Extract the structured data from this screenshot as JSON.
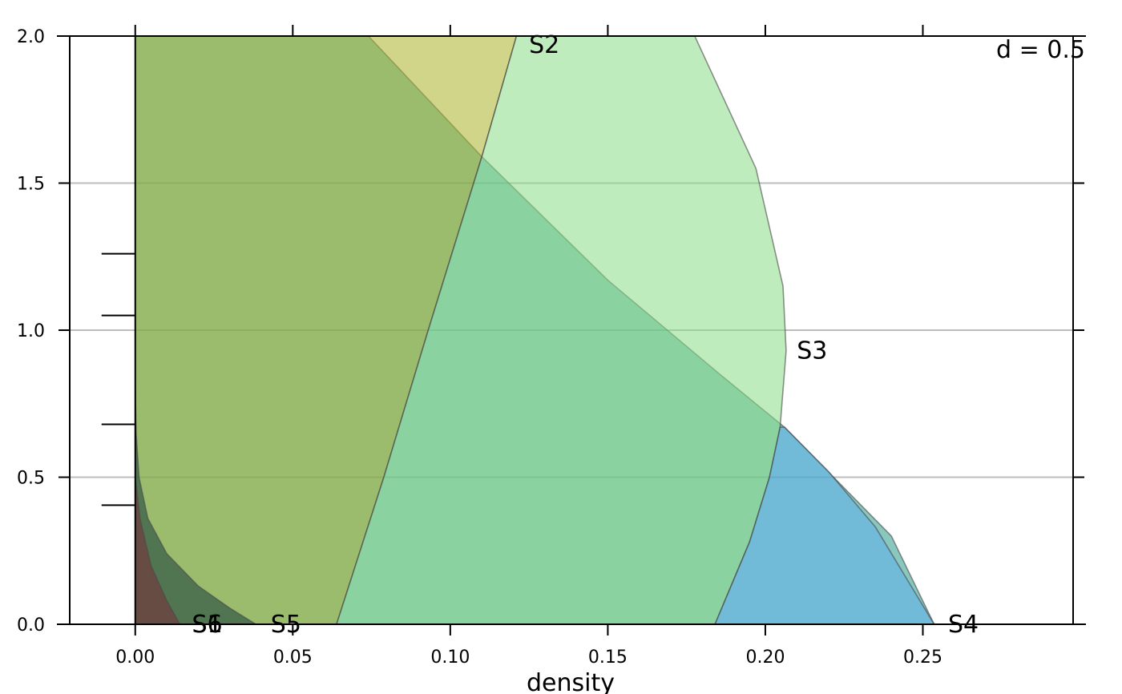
{
  "chart_data": {
    "type": "area",
    "panel_label": "d = 0.5",
    "xlabel": "density",
    "ylabel": "",
    "xlim": [
      -0.0208,
      0.2977
    ],
    "ylim": [
      0,
      2
    ],
    "x_ticks": [
      "0.00",
      "0.05",
      "0.10",
      "0.15",
      "0.20",
      "0.25"
    ],
    "x_tick_values": [
      0,
      0.05,
      0.1,
      0.15,
      0.2,
      0.25
    ],
    "y_ticks": [
      "0.0",
      "0.5",
      "1.0",
      "1.5",
      "2.0"
    ],
    "y_tick_values": [
      0,
      0.5,
      1.0,
      1.5,
      2.0
    ],
    "horizontal_grid": true,
    "rug_values": [
      0.405,
      0.68,
      1.05,
      1.26
    ],
    "series": [
      {
        "name": "S1",
        "label": "S1",
        "color": "#2A9B8A",
        "points": [
          [
            0.0,
            0.0
          ],
          [
            0.0,
            2.0
          ],
          [
            0.074,
            2.0
          ],
          [
            0.11,
            1.59
          ],
          [
            0.15,
            1.17
          ],
          [
            0.1856,
            0.85
          ],
          [
            0.2061,
            0.67
          ],
          [
            0.24,
            0.3
          ],
          [
            0.2536,
            0.0
          ]
        ]
      },
      {
        "name": "S2",
        "label": "S2",
        "color": "#A9B32A",
        "points": [
          [
            0.0,
            0.0
          ],
          [
            0.0,
            2.0
          ],
          [
            0.121,
            2.0
          ],
          [
            0.11,
            1.59
          ],
          [
            0.093,
            1.0
          ],
          [
            0.0789,
            0.5
          ],
          [
            0.0639,
            0.0
          ]
        ]
      },
      {
        "name": "S3",
        "label": "S3",
        "color": "#8BDC86",
        "points": [
          [
            0.0639,
            0.0
          ],
          [
            0.0789,
            0.5
          ],
          [
            0.093,
            1.0
          ],
          [
            0.11,
            1.59
          ],
          [
            0.121,
            2.0
          ],
          [
            0.1776,
            2.0
          ],
          [
            0.197,
            1.55
          ],
          [
            0.2056,
            1.15
          ],
          [
            0.2066,
            0.93
          ],
          [
            0.2047,
            0.67
          ],
          [
            0.2013,
            0.5
          ],
          [
            0.195,
            0.28
          ],
          [
            0.184,
            0.0
          ]
        ]
      },
      {
        "name": "S4",
        "label": "S4",
        "color": "#5DB0EE",
        "points": [
          [
            0.184,
            0.0
          ],
          [
            0.195,
            0.28
          ],
          [
            0.2013,
            0.5
          ],
          [
            0.2047,
            0.67
          ],
          [
            0.2061,
            0.67
          ],
          [
            0.22,
            0.52
          ],
          [
            0.235,
            0.33
          ],
          [
            0.2536,
            0.0
          ]
        ]
      },
      {
        "name": "S5",
        "label": "S5",
        "color": "#143A3A",
        "points": [
          [
            0.0,
            0.0
          ],
          [
            0.0,
            0.8
          ],
          [
            0.0003,
            0.65
          ],
          [
            0.0012,
            0.5
          ],
          [
            0.004,
            0.36
          ],
          [
            0.01,
            0.24
          ],
          [
            0.02,
            0.13
          ],
          [
            0.03,
            0.055
          ],
          [
            0.0383,
            0.0
          ]
        ]
      },
      {
        "name": "S6",
        "label": "S6",
        "color": "#7A2A3A",
        "points": [
          [
            0.0,
            0.0
          ],
          [
            0.0,
            0.5
          ],
          [
            0.0015,
            0.36
          ],
          [
            0.005,
            0.2
          ],
          [
            0.01,
            0.08
          ],
          [
            0.0142,
            0.0
          ]
        ]
      }
    ]
  }
}
